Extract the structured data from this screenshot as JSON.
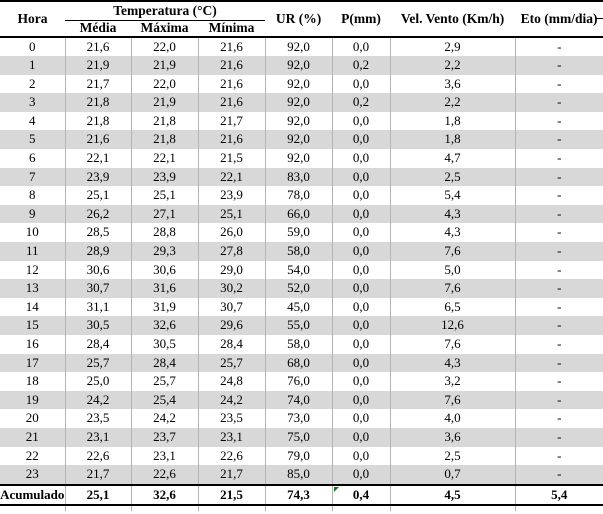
{
  "table": {
    "header": {
      "hora": "Hora",
      "temperatura_group": "Temperatura (°C)",
      "temp_subcols": [
        "Média",
        "Máxima",
        "Mínima"
      ],
      "ur": "UR (%)",
      "p": "P(mm)",
      "vento": "Vel. Vento (Km/h)",
      "eto": "Eto (mm/dia)"
    },
    "rows": [
      [
        "0",
        "21,6",
        "22,0",
        "21,6",
        "92,0",
        "0,0",
        "2,9",
        "-"
      ],
      [
        "1",
        "21,9",
        "21,9",
        "21,6",
        "92,0",
        "0,2",
        "2,2",
        "-"
      ],
      [
        "2",
        "21,7",
        "22,0",
        "21,6",
        "92,0",
        "0,0",
        "3,6",
        "-"
      ],
      [
        "3",
        "21,8",
        "21,9",
        "21,6",
        "92,0",
        "0,2",
        "2,2",
        "-"
      ],
      [
        "4",
        "21,8",
        "21,8",
        "21,7",
        "92,0",
        "0,0",
        "1,8",
        "-"
      ],
      [
        "5",
        "21,6",
        "21,8",
        "21,6",
        "92,0",
        "0,0",
        "1,8",
        "-"
      ],
      [
        "6",
        "22,1",
        "22,1",
        "21,5",
        "92,0",
        "0,0",
        "4,7",
        "-"
      ],
      [
        "7",
        "23,9",
        "23,9",
        "22,1",
        "83,0",
        "0,0",
        "2,5",
        "-"
      ],
      [
        "8",
        "25,1",
        "25,1",
        "23,9",
        "78,0",
        "0,0",
        "5,4",
        "-"
      ],
      [
        "9",
        "26,2",
        "27,1",
        "25,1",
        "66,0",
        "0,0",
        "4,3",
        "-"
      ],
      [
        "10",
        "28,5",
        "28,8",
        "26,0",
        "59,0",
        "0,0",
        "4,3",
        "-"
      ],
      [
        "11",
        "28,9",
        "29,3",
        "27,8",
        "58,0",
        "0,0",
        "7,6",
        "-"
      ],
      [
        "12",
        "30,6",
        "30,6",
        "29,0",
        "54,0",
        "0,0",
        "5,0",
        "-"
      ],
      [
        "13",
        "30,7",
        "31,6",
        "30,2",
        "52,0",
        "0,0",
        "7,6",
        "-"
      ],
      [
        "14",
        "31,1",
        "31,9",
        "30,7",
        "45,0",
        "0,0",
        "6,5",
        "-"
      ],
      [
        "15",
        "30,5",
        "32,6",
        "29,6",
        "55,0",
        "0,0",
        "12,6",
        "-"
      ],
      [
        "16",
        "28,4",
        "30,5",
        "28,4",
        "58,0",
        "0,0",
        "7,6",
        "-"
      ],
      [
        "17",
        "25,7",
        "28,4",
        "25,7",
        "68,0",
        "0,0",
        "4,3",
        "-"
      ],
      [
        "18",
        "25,0",
        "25,7",
        "24,8",
        "76,0",
        "0,0",
        "3,2",
        "-"
      ],
      [
        "19",
        "24,2",
        "25,4",
        "24,2",
        "74,0",
        "0,0",
        "7,6",
        "-"
      ],
      [
        "20",
        "23,5",
        "24,2",
        "23,5",
        "73,0",
        "0,0",
        "4,0",
        "-"
      ],
      [
        "21",
        "23,1",
        "23,7",
        "23,1",
        "75,0",
        "0,0",
        "3,6",
        "-"
      ],
      [
        "22",
        "22,6",
        "23,1",
        "22,6",
        "79,0",
        "0,0",
        "2,5",
        "-"
      ],
      [
        "23",
        "21,7",
        "22,6",
        "21,7",
        "85,0",
        "0,0",
        "0,7",
        "-"
      ]
    ],
    "footer": {
      "label": "Acumulado",
      "values": [
        "25,1",
        "32,6",
        "21,5",
        "74,3",
        "0,4",
        "4,5",
        "5,4"
      ],
      "indicator_col": 4
    }
  },
  "colors": {
    "stripe": "#d8d8d8",
    "grid": "#b3b3b3",
    "indicator_green": "#1f7a1f",
    "border": "#000000"
  }
}
